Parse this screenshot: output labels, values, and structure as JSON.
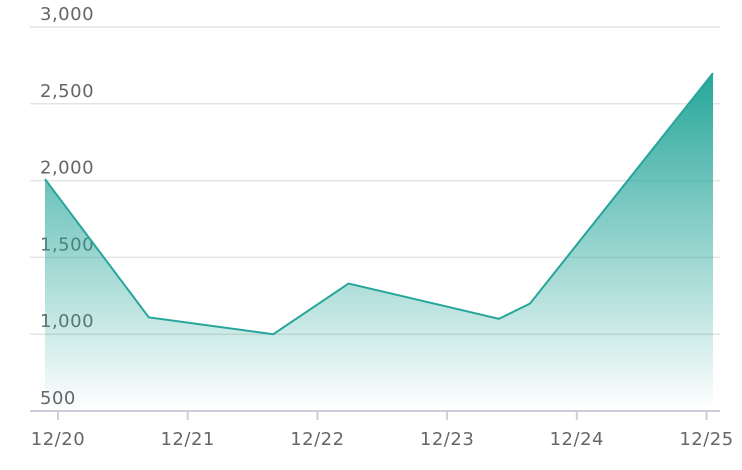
{
  "chart_data": {
    "type": "area",
    "x": [
      -0.1,
      0.7,
      1.66,
      2.24,
      3.4,
      3.64,
      5.05
    ],
    "values": [
      2010,
      1110,
      1000,
      1330,
      1100,
      1200,
      2700
    ],
    "color": "#26a69a",
    "xlim": [
      -0.1,
      5.05
    ],
    "xticks": [
      {
        "value": 0,
        "label": "12/20"
      },
      {
        "value": 1,
        "label": "12/21"
      },
      {
        "value": 2,
        "label": "12/22"
      },
      {
        "value": 3,
        "label": "12/23"
      },
      {
        "value": 4,
        "label": "12/24"
      },
      {
        "value": 5,
        "label": "12/25"
      }
    ],
    "ylim": [
      500,
      3000
    ],
    "yticks": [
      {
        "value": 500,
        "label": "500"
      },
      {
        "value": 1000,
        "label": "1,000"
      },
      {
        "value": 1500,
        "label": "1,500"
      },
      {
        "value": 2000,
        "label": "2,000"
      },
      {
        "value": 2500,
        "label": "2,500"
      },
      {
        "value": 3000,
        "label": "3,000"
      }
    ],
    "grid": true
  }
}
